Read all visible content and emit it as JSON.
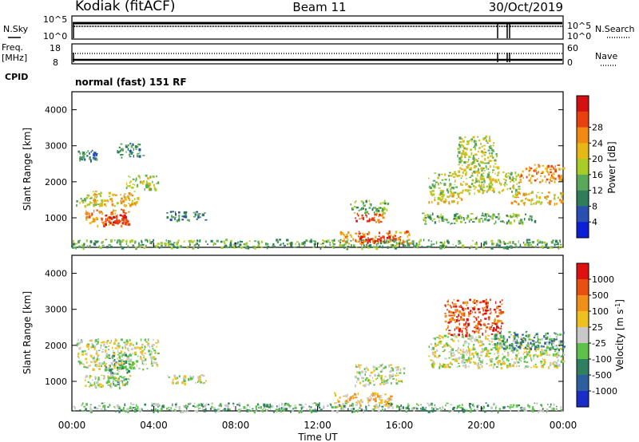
{
  "header": {
    "station": "Kodiak (fitACF)",
    "beam": "Beam 11",
    "date": "30/Oct/2019"
  },
  "panels": {
    "nsky": {
      "left_label": "N.Sky",
      "right_label": "N.Search",
      "left_ticks": [
        "10^5",
        "10^0"
      ],
      "right_ticks": [
        "10^5",
        "10^0"
      ]
    },
    "freq": {
      "left_label_line1": "Freq.",
      "left_label_line2": "[MHz]",
      "right_label": "Nave",
      "left_ticks": [
        "18",
        "8"
      ],
      "right_ticks": [
        "60",
        "0"
      ]
    },
    "cpid": {
      "label": "CPID",
      "value": "normal (fast) 151 RF"
    }
  },
  "chart_data": [
    {
      "type": "heatmap",
      "name": "power",
      "ylabel": "Slant Range [km]",
      "xlabel": "",
      "ylim": [
        180,
        4500
      ],
      "yticks": [
        1000,
        2000,
        3000,
        4000
      ],
      "xlim": [
        0,
        24
      ],
      "colorbar": {
        "label": "Power [dB]",
        "ticks": [
          "4",
          "8",
          "12",
          "16",
          "20",
          "24",
          "28"
        ],
        "colors": [
          "#0a1fd6",
          "#2850b0",
          "#2f7e5a",
          "#5aa85a",
          "#a8cc28",
          "#e7b814",
          "#f08a10",
          "#e8400e",
          "#d61010"
        ]
      },
      "scatter_regions": [
        {
          "t0": 0.2,
          "t1": 1.5,
          "r0": 1350,
          "r1": 1700,
          "level": 4
        },
        {
          "t0": 1.0,
          "t1": 3.2,
          "r0": 1350,
          "r1": 1750,
          "level": 5
        },
        {
          "t0": 2.6,
          "t1": 4.2,
          "r0": 1800,
          "r1": 2200,
          "level": 4
        },
        {
          "t0": 0.6,
          "t1": 2.8,
          "r0": 800,
          "r1": 1250,
          "level": 6
        },
        {
          "t0": 1.6,
          "t1": 2.6,
          "r0": 850,
          "r1": 1100,
          "level": 8
        },
        {
          "t0": 0.2,
          "t1": 1.2,
          "r0": 2600,
          "r1": 2900,
          "level": 2
        },
        {
          "t0": 2.2,
          "t1": 3.5,
          "r0": 2700,
          "r1": 3100,
          "level": 2
        },
        {
          "t0": 4.6,
          "t1": 6.6,
          "r0": 950,
          "r1": 1200,
          "level": 2
        },
        {
          "t0": 13.8,
          "t1": 15.2,
          "r0": 900,
          "r1": 1150,
          "level": 7
        },
        {
          "t0": 13.6,
          "t1": 15.4,
          "r0": 1150,
          "r1": 1500,
          "level": 3
        },
        {
          "t0": 13.0,
          "t1": 16.6,
          "r0": 300,
          "r1": 650,
          "level": 6
        },
        {
          "t0": 14.0,
          "t1": 16.0,
          "r0": 320,
          "r1": 520,
          "level": 8
        },
        {
          "t0": 17.4,
          "t1": 19.0,
          "r0": 1400,
          "r1": 1700,
          "level": 5
        },
        {
          "t0": 17.4,
          "t1": 21.8,
          "r0": 1700,
          "r1": 2300,
          "level": 4
        },
        {
          "t0": 18.8,
          "t1": 20.8,
          "r0": 2300,
          "r1": 3300,
          "level": 4
        },
        {
          "t0": 21.4,
          "t1": 24.0,
          "r0": 1400,
          "r1": 1750,
          "level": 5
        },
        {
          "t0": 21.8,
          "t1": 24.0,
          "r0": 2000,
          "r1": 2500,
          "level": 6
        },
        {
          "t0": 17.0,
          "t1": 22.6,
          "r0": 850,
          "r1": 1150,
          "level": 3
        },
        {
          "t0": 0.0,
          "t1": 24.0,
          "r0": 180,
          "r1": 420,
          "level": 3
        }
      ]
    },
    {
      "type": "heatmap",
      "name": "velocity",
      "ylabel": "Slant Range [km]",
      "xlabel": "Time UT",
      "ylim": [
        180,
        4500
      ],
      "yticks": [
        1000,
        2000,
        3000,
        4000
      ],
      "xlim": [
        0,
        24
      ],
      "xticks": [
        "00:00",
        "04:00",
        "08:00",
        "12:00",
        "16:00",
        "20:00",
        "00:00"
      ],
      "colorbar": {
        "label": "Velocity [m s^-1]",
        "ticks": [
          "1000",
          "500",
          "100",
          "25",
          "-25",
          "-100",
          "-500",
          "-1000"
        ],
        "colors": [
          "#1a2cc8",
          "#2d5fa0",
          "#2e8060",
          "#5cc24a",
          "#c8c8c8",
          "#f0c020",
          "#f09018",
          "#e85010",
          "#e01010"
        ]
      },
      "scatter_regions": [
        {
          "t0": 0.2,
          "t1": 4.2,
          "r0": 1350,
          "r1": 2200,
          "level": 4
        },
        {
          "t0": 1.6,
          "t1": 2.8,
          "r0": 900,
          "r1": 1800,
          "level": 3
        },
        {
          "t0": 0.6,
          "t1": 2.8,
          "r0": 850,
          "r1": 1200,
          "level": 4
        },
        {
          "t0": 4.6,
          "t1": 6.6,
          "r0": 950,
          "r1": 1200,
          "level": 4
        },
        {
          "t0": 12.8,
          "t1": 15.6,
          "r0": 300,
          "r1": 700,
          "level": 5
        },
        {
          "t0": 13.8,
          "t1": 16.2,
          "r0": 900,
          "r1": 1500,
          "level": 4
        },
        {
          "t0": 17.4,
          "t1": 24.0,
          "r0": 1400,
          "r1": 2300,
          "level": 4
        },
        {
          "t0": 18.2,
          "t1": 21.0,
          "r0": 2300,
          "r1": 3300,
          "level": 7
        },
        {
          "t0": 20.6,
          "t1": 24.0,
          "r0": 1900,
          "r1": 2400,
          "level": 2
        },
        {
          "t0": 0.0,
          "t1": 24.0,
          "r0": 180,
          "r1": 420,
          "level": 3
        }
      ]
    }
  ]
}
